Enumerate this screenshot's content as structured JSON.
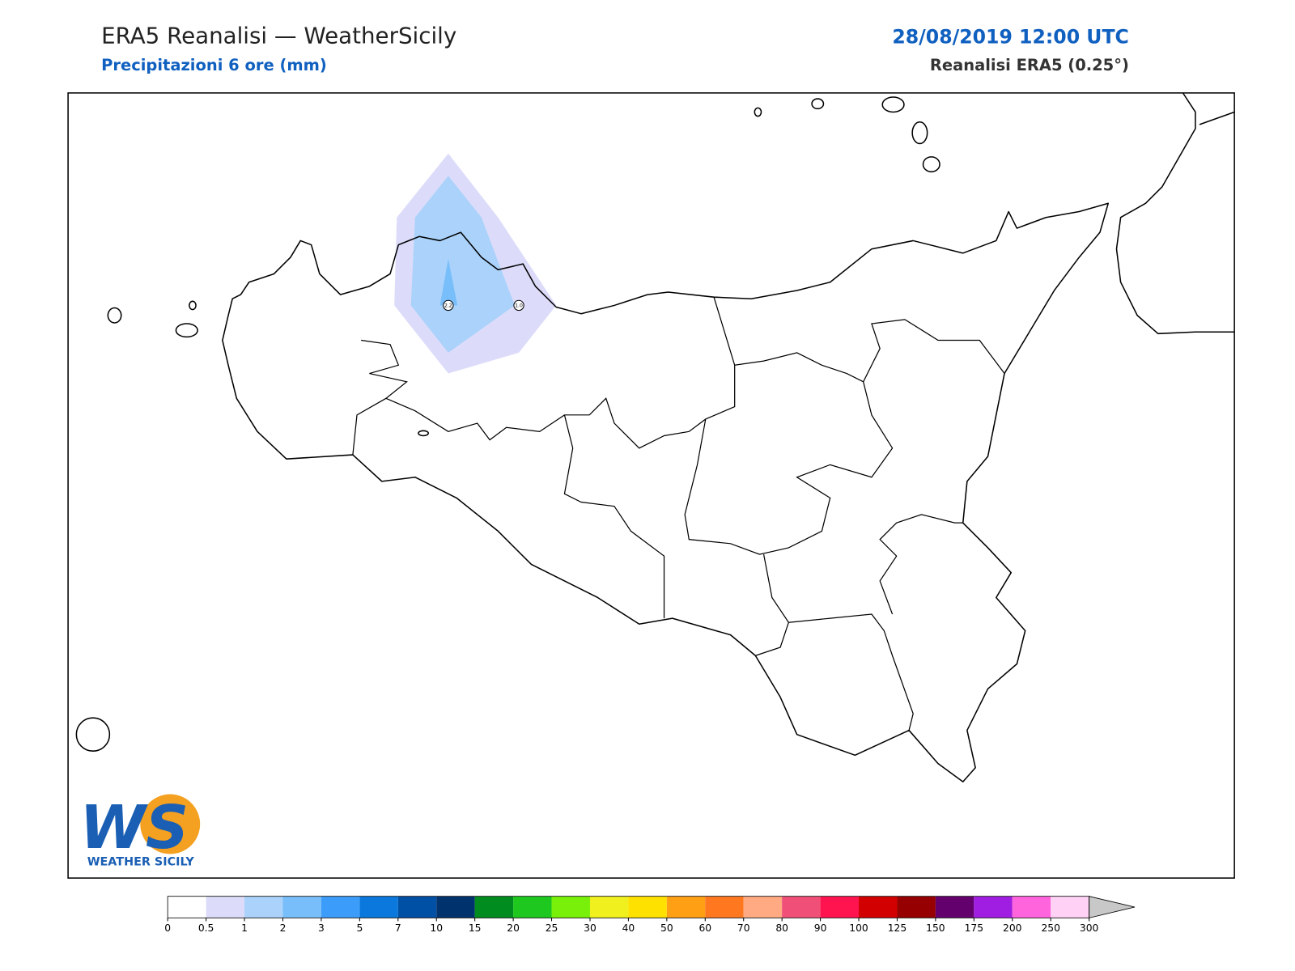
{
  "header": {
    "title": "ERA5 Reanalisi — WeatherSicily",
    "subtitle": "Precipitazioni 6 ore (mm)",
    "datetime": "28/08/2019 12:00 UTC",
    "source": "Reanalisi ERA5 (0.25°)"
  },
  "map": {
    "point_values": [
      2.2,
      {
        "value": 1,
        "label": "1.0"
      }
    ],
    "colorbar": {
      "levels": [
        0,
        0.5,
        1,
        2,
        3,
        5,
        7,
        10,
        15,
        20,
        25,
        30,
        40,
        50,
        60,
        70,
        80,
        90,
        100,
        125,
        150,
        175,
        200,
        250,
        300
      ],
      "colors": [
        "#ffffff",
        "#dcdcfa",
        "#aad2fa",
        "#78befa",
        "#3c9cfa",
        "#0a78dc",
        "#0050a5",
        "#00326e",
        "#008c1e",
        "#1ec81e",
        "#78f00a",
        "#f0f01e",
        "#ffe100",
        "#ffa014",
        "#ff7820",
        "#ffaa82",
        "#f05078",
        "#ff1450",
        "#d20000",
        "#960000",
        "#64006e",
        "#a01ee1",
        "#ff64dc",
        "#ffd2f5"
      ],
      "extend_color": "#c8c8c8"
    }
  },
  "logo": {
    "mark": "WS",
    "text": "WEATHER SICILY"
  }
}
